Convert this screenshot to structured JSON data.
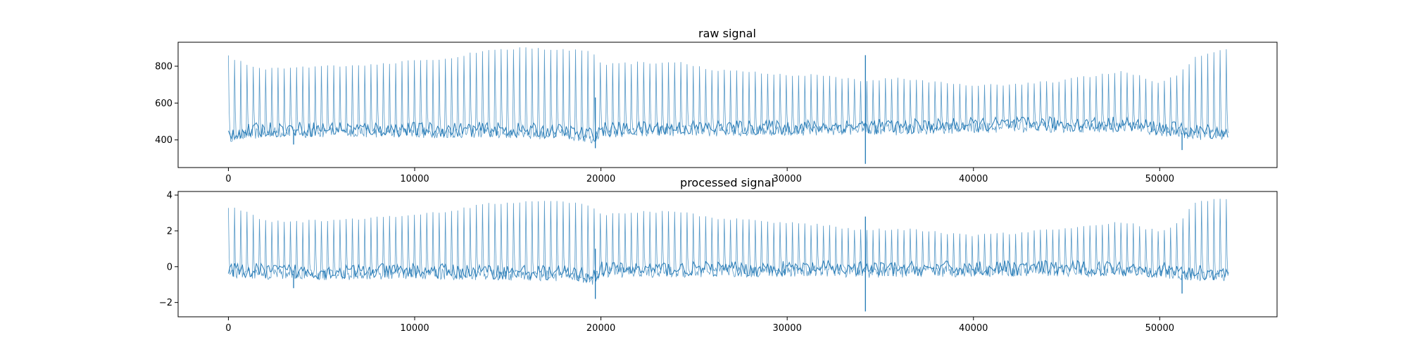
{
  "chart_data": [
    {
      "type": "line",
      "title": "raw signal",
      "xlim": [
        -2700,
        56300
      ],
      "ylim": [
        250,
        930
      ],
      "xticks": [
        0,
        10000,
        20000,
        30000,
        40000,
        50000
      ],
      "xtick_labels": [
        "0",
        "10000",
        "20000",
        "30000",
        "40000",
        "50000"
      ],
      "yticks": [
        400,
        600,
        800
      ],
      "ytick_labels": [
        "400",
        "600",
        "800"
      ],
      "series": [
        {
          "color": "#1f77b4",
          "x_range": [
            0,
            53700
          ],
          "baseline_profile": [
            [
              0,
              420
            ],
            [
              2000,
              440
            ],
            [
              6000,
              445
            ],
            [
              10000,
              440
            ],
            [
              14000,
              440
            ],
            [
              18000,
              430
            ],
            [
              19600,
              410
            ],
            [
              20000,
              440
            ],
            [
              24000,
              450
            ],
            [
              28000,
              450
            ],
            [
              32000,
              455
            ],
            [
              34000,
              460
            ],
            [
              36000,
              455
            ],
            [
              40000,
              465
            ],
            [
              44000,
              470
            ],
            [
              48000,
              470
            ],
            [
              50000,
              450
            ],
            [
              52000,
              430
            ],
            [
              53700,
              430
            ]
          ],
          "peak_profile": [
            [
              0,
              860
            ],
            [
              1000,
              820
            ],
            [
              2000,
              790
            ],
            [
              4000,
              800
            ],
            [
              8000,
              820
            ],
            [
              12000,
              850
            ],
            [
              14000,
              900
            ],
            [
              16000,
              905
            ],
            [
              18000,
              900
            ],
            [
              19500,
              880
            ],
            [
              20000,
              820
            ],
            [
              24000,
              830
            ],
            [
              26000,
              790
            ],
            [
              30000,
              760
            ],
            [
              32000,
              760
            ],
            [
              34000,
              730
            ],
            [
              36000,
              740
            ],
            [
              38000,
              720
            ],
            [
              40000,
              700
            ],
            [
              44000,
              720
            ],
            [
              48000,
              780
            ],
            [
              50000,
              720
            ],
            [
              51000,
              760
            ],
            [
              52000,
              860
            ],
            [
              53700,
              905
            ]
          ],
          "events": [
            {
              "x": 3500,
              "low": 375
            },
            {
              "x": 19700,
              "high": 630,
              "low": 355
            },
            {
              "x": 34200,
              "high": 860,
              "low": 270
            },
            {
              "x": 51200,
              "low": 345
            }
          ]
        }
      ]
    },
    {
      "type": "line",
      "title": "processed signal",
      "xlim": [
        -2700,
        56300
      ],
      "ylim": [
        -2.8,
        4.2
      ],
      "xticks": [
        0,
        10000,
        20000,
        30000,
        40000,
        50000
      ],
      "xtick_labels": [
        "0",
        "10000",
        "20000",
        "30000",
        "40000",
        "50000"
      ],
      "yticks": [
        -2,
        0,
        2,
        4
      ],
      "ytick_labels": [
        "−2",
        "0",
        "2",
        "4"
      ],
      "series": [
        {
          "color": "#1f77b4",
          "x_range": [
            0,
            53700
          ],
          "baseline_profile": [
            [
              0,
              -0.4
            ],
            [
              2000,
              -0.4
            ],
            [
              6000,
              -0.45
            ],
            [
              10000,
              -0.4
            ],
            [
              14000,
              -0.45
            ],
            [
              18000,
              -0.5
            ],
            [
              19600,
              -0.7
            ],
            [
              20000,
              -0.3
            ],
            [
              24000,
              -0.3
            ],
            [
              28000,
              -0.3
            ],
            [
              32000,
              -0.25
            ],
            [
              34000,
              -0.3
            ],
            [
              36000,
              -0.3
            ],
            [
              40000,
              -0.25
            ],
            [
              44000,
              -0.25
            ],
            [
              48000,
              -0.25
            ],
            [
              50000,
              -0.35
            ],
            [
              52000,
              -0.5
            ],
            [
              53700,
              -0.5
            ]
          ],
          "peak_profile": [
            [
              0,
              3.4
            ],
            [
              1000,
              3.1
            ],
            [
              2000,
              2.6
            ],
            [
              4000,
              2.6
            ],
            [
              8000,
              2.8
            ],
            [
              12000,
              3.2
            ],
            [
              14000,
              3.6
            ],
            [
              16000,
              3.7
            ],
            [
              18000,
              3.7
            ],
            [
              19500,
              3.5
            ],
            [
              20000,
              3.0
            ],
            [
              24000,
              3.2
            ],
            [
              26000,
              2.8
            ],
            [
              30000,
              2.5
            ],
            [
              32000,
              2.4
            ],
            [
              34000,
              2.1
            ],
            [
              36000,
              2.2
            ],
            [
              38000,
              2.0
            ],
            [
              40000,
              1.8
            ],
            [
              44000,
              2.1
            ],
            [
              48000,
              2.6
            ],
            [
              50000,
              2.0
            ],
            [
              51000,
              2.5
            ],
            [
              52000,
              3.8
            ],
            [
              53700,
              3.8
            ]
          ],
          "events": [
            {
              "x": 3500,
              "low": -1.2
            },
            {
              "x": 19700,
              "high": 1.0,
              "low": -1.8
            },
            {
              "x": 34200,
              "high": 2.8,
              "low": -2.5
            },
            {
              "x": 51200,
              "low": -1.5
            }
          ]
        }
      ]
    }
  ]
}
